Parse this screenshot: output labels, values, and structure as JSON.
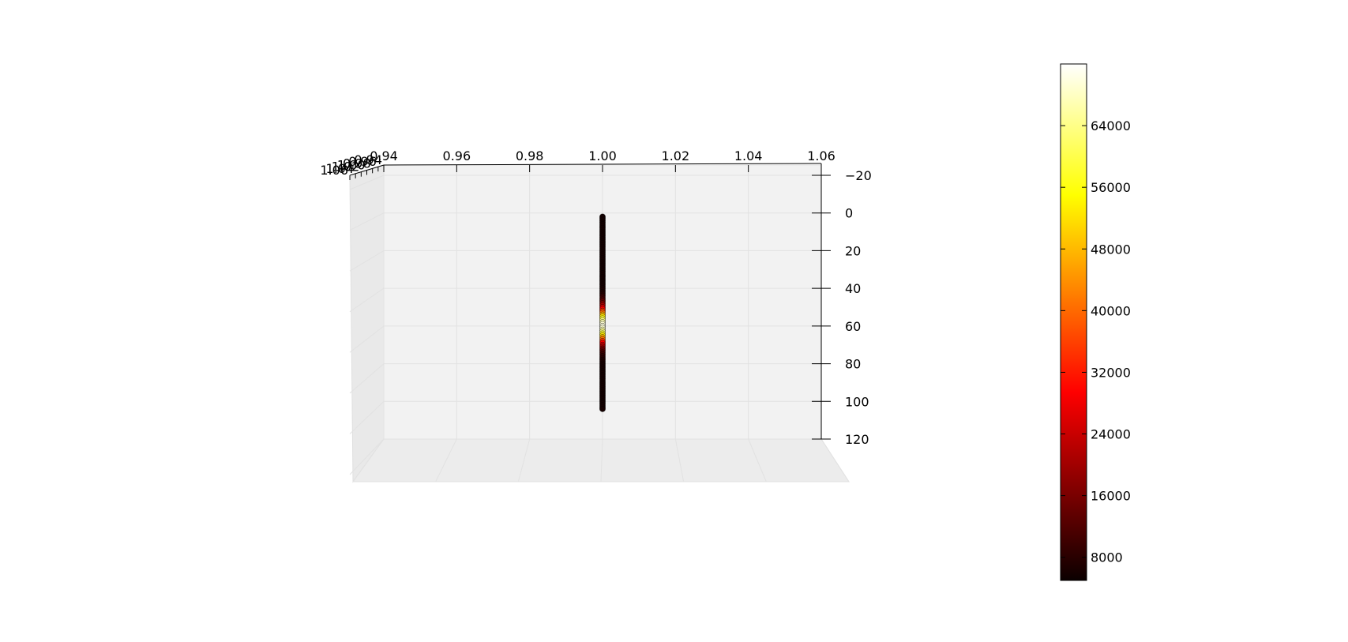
{
  "chart_data": {
    "type": "scatter",
    "title": "",
    "xlabel": "",
    "ylabel": "",
    "zlabel": "",
    "x_ticks": [
      "0.94",
      "0.96",
      "0.98",
      "1.00",
      "1.02",
      "1.04",
      "1.06"
    ],
    "z_ticks": [
      "−20",
      "0",
      "20",
      "40",
      "60",
      "80",
      "100",
      "120"
    ],
    "y_ticks": [
      "1.06",
      "1.04",
      "1.02",
      "1.00",
      "0.98",
      "0.96",
      "0.94"
    ],
    "xlim": [
      0.94,
      1.06
    ],
    "zlim": [
      -20,
      120
    ],
    "zaxis_inverted": true,
    "grid": true,
    "colormap": "hot",
    "colorbar": {
      "ticks": [
        "8000",
        "16000",
        "24000",
        "32000",
        "40000",
        "48000",
        "56000",
        "64000"
      ],
      "range": [
        5000,
        72000
      ]
    },
    "points": {
      "x": 1.0,
      "y": 1.0,
      "depth_start": 2,
      "depth_end": 104,
      "depth_step": 1,
      "peak_depth": 60,
      "peak_value": 70000,
      "base_value": 6000,
      "spread": 9
    }
  }
}
